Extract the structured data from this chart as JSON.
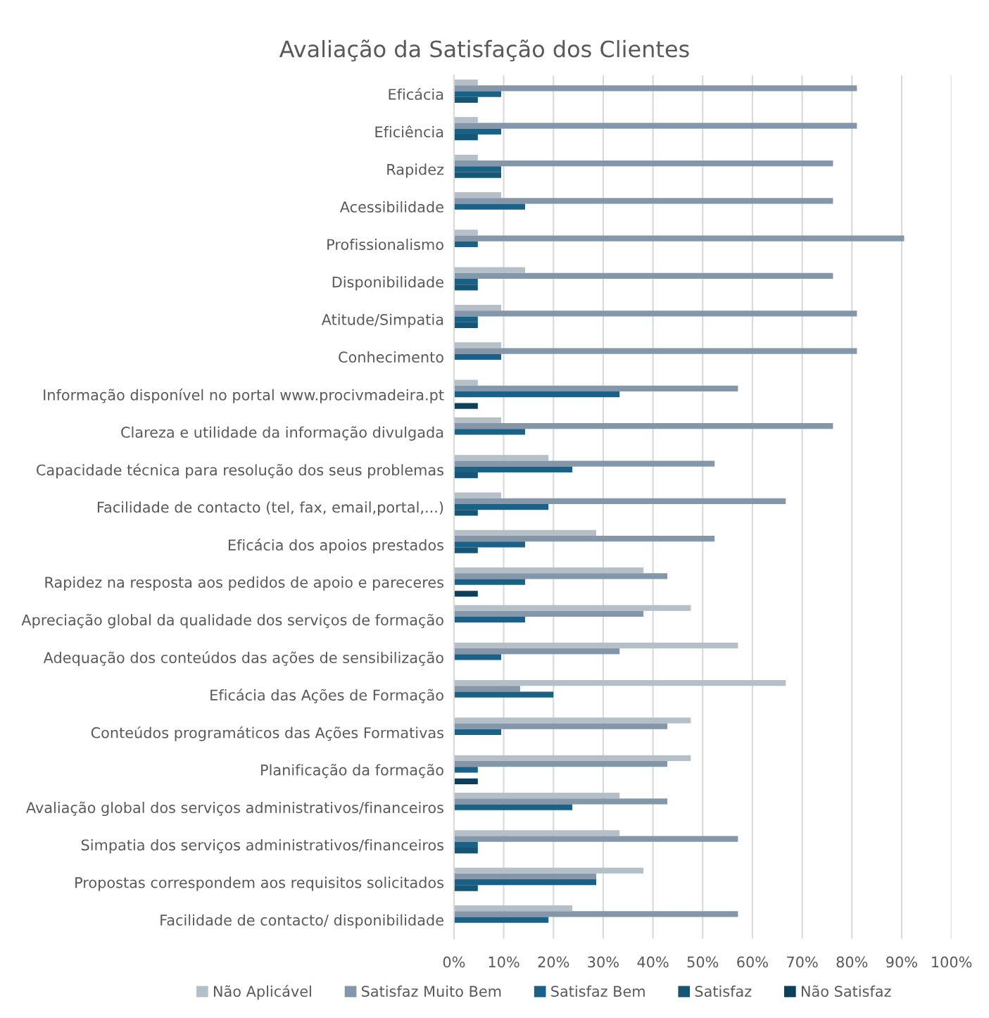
{
  "chart_data": {
    "type": "bar",
    "orientation": "horizontal",
    "title": "Avaliação da Satisfação dos Clientes",
    "categories": [
      "Eficácia",
      "Eficiência",
      "Rapidez",
      "Acessibilidade",
      "Profissionalismo",
      "Disponibilidade",
      "Atitude/Simpatia",
      "Conhecimento",
      "Informação disponível no portal www.procivmadeira.pt",
      "Clareza e utilidade da informação divulgada",
      "Capacidade técnica para resolução dos seus problemas",
      "Facilidade de contacto (tel, fax, email,portal,...)",
      "Eficácia dos apoios prestados",
      "Rapidez na resposta aos pedidos de apoio e pareceres",
      "Apreciação global da qualidade dos serviços de formação",
      "Adequação dos conteúdos das ações de sensibilização",
      "Eficácia das Ações de Formação",
      "Conteúdos programáticos das Ações Formativas",
      "Planificação da formação",
      "Avaliação global dos serviços administrativos/financeiros",
      "Simpatia dos serviços administrativos/financeiros",
      "Propostas correspondem aos requisitos solicitados",
      "Facilidade de contacto/ disponibilidade"
    ],
    "series": [
      {
        "name": "Não Aplicável",
        "color": "#b4bfc8",
        "values": [
          4.8,
          4.8,
          4.8,
          9.5,
          4.8,
          14.3,
          9.5,
          9.5,
          4.8,
          9.5,
          19.0,
          9.5,
          28.6,
          38.1,
          47.6,
          57.1,
          66.7,
          47.6,
          47.6,
          33.3,
          33.3,
          38.1,
          23.8
        ]
      },
      {
        "name": "Satisfaz Muito Bem",
        "color": "#8497aa",
        "values": [
          81.0,
          81.0,
          76.2,
          76.2,
          90.5,
          76.2,
          81.0,
          81.0,
          57.1,
          76.2,
          52.4,
          66.7,
          52.4,
          42.9,
          38.1,
          33.3,
          13.3,
          42.9,
          42.9,
          42.9,
          57.1,
          28.6,
          57.1
        ]
      },
      {
        "name": "Satisfaz Bem",
        "color": "#1a6185",
        "values": [
          9.5,
          9.5,
          9.5,
          14.3,
          4.8,
          4.8,
          4.8,
          9.5,
          33.3,
          14.3,
          23.8,
          19.0,
          14.3,
          14.3,
          14.3,
          9.5,
          20.0,
          9.5,
          4.8,
          23.8,
          4.8,
          28.6,
          19.0
        ]
      },
      {
        "name": "Satisfaz",
        "color": "#175575",
        "values": [
          4.8,
          4.8,
          9.5,
          0,
          0,
          4.8,
          4.8,
          0,
          0,
          0,
          4.8,
          4.8,
          4.8,
          0,
          0,
          0,
          0,
          0,
          0,
          0,
          4.8,
          4.8,
          0
        ]
      },
      {
        "name": "Não Satisfaz",
        "color": "#0e3f5a",
        "values": [
          0,
          0,
          0,
          0,
          0,
          0,
          0,
          0,
          4.8,
          0,
          0,
          0,
          0,
          4.8,
          0,
          0,
          0,
          0,
          4.8,
          0,
          0,
          0,
          0
        ]
      }
    ],
    "xlim": [
      0,
      100
    ],
    "xticks": [
      {
        "value": 0,
        "label": "0%"
      },
      {
        "value": 10,
        "label": "10%"
      },
      {
        "value": 20,
        "label": "20%"
      },
      {
        "value": 30,
        "label": "30%"
      },
      {
        "value": 40,
        "label": "40%"
      },
      {
        "value": 50,
        "label": "50%"
      },
      {
        "value": 60,
        "label": "60%"
      },
      {
        "value": 70,
        "label": "70%"
      },
      {
        "value": 80,
        "label": "80%"
      },
      {
        "value": 90,
        "label": "90%"
      },
      {
        "value": 100,
        "label": "100%"
      }
    ],
    "grid": "x",
    "legend": "bottom"
  }
}
